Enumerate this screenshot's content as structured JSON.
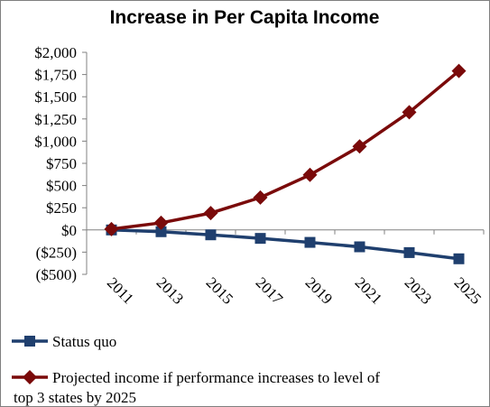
{
  "chart_data": {
    "type": "line",
    "title": "Increase in Per Capita Income",
    "xlabel": "",
    "ylabel": "",
    "categories": [
      "2011",
      "2013",
      "2015",
      "2017",
      "2019",
      "2021",
      "2023",
      "2025"
    ],
    "ylim": [
      -500,
      2000
    ],
    "ytick_values": [
      -500,
      -250,
      0,
      250,
      500,
      750,
      1000,
      1250,
      1500,
      1750,
      2000
    ],
    "ytick_labels": [
      "($500)",
      "($250)",
      "$0",
      "$250",
      "$500",
      "$750",
      "$1,000",
      "$1,250",
      "$1,500",
      "$1,750",
      "$2,000"
    ],
    "grid": false,
    "legend_position": "bottom",
    "series": [
      {
        "name": "Status quo",
        "color": "#1f3f6e",
        "marker": "square",
        "values": [
          0,
          -20,
          -55,
          -95,
          -140,
          -190,
          -255,
          -325
        ]
      },
      {
        "name": "Projected income if performance increases to level of top 3 states by 2025",
        "color": "#7a0a0a",
        "marker": "diamond",
        "values": [
          10,
          80,
          190,
          365,
          620,
          940,
          1325,
          1790
        ]
      }
    ]
  }
}
